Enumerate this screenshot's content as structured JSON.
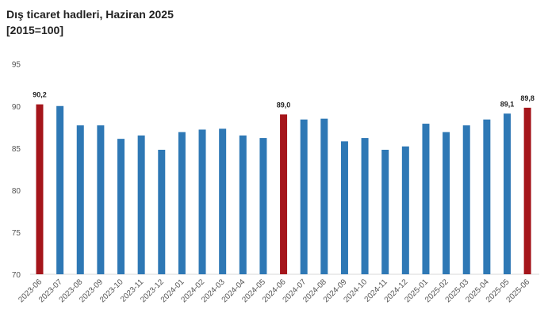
{
  "chart_data": {
    "type": "bar",
    "title": "Dış ticaret hadleri, Haziran 2025",
    "subtitle": "[2015=100]",
    "xlabel": "",
    "ylabel": "",
    "ylim": [
      70,
      95
    ],
    "yticks": [
      70,
      75,
      80,
      85,
      90,
      95
    ],
    "grid": false,
    "categories": [
      "2023-06",
      "2023-07",
      "2023-08",
      "2023-09",
      "2023-10",
      "2023-11",
      "2023-12",
      "2024-01",
      "2024-02",
      "2024-03",
      "2024-04",
      "2024-05",
      "2024-06",
      "2024-07",
      "2024-08",
      "2024-09",
      "2024-10",
      "2024-11",
      "2024-12",
      "2025-01",
      "2025-02",
      "2025-03",
      "2025-04",
      "2025-05",
      "2025-06"
    ],
    "values": [
      90.2,
      90.0,
      87.7,
      87.7,
      86.1,
      86.5,
      84.8,
      86.9,
      87.2,
      87.3,
      86.5,
      86.2,
      89.0,
      88.4,
      88.5,
      85.8,
      86.2,
      84.8,
      85.2,
      87.9,
      86.9,
      87.7,
      88.4,
      89.1,
      89.8
    ],
    "data_labels": {
      "0": "90,2",
      "12": "89,0",
      "23": "89,1",
      "24": "89,8"
    },
    "highlighted": [
      0,
      12,
      24
    ],
    "colors": {
      "bar": "#2e78b5",
      "highlight": "#a5151b",
      "axis": "#d9d9d9"
    }
  }
}
